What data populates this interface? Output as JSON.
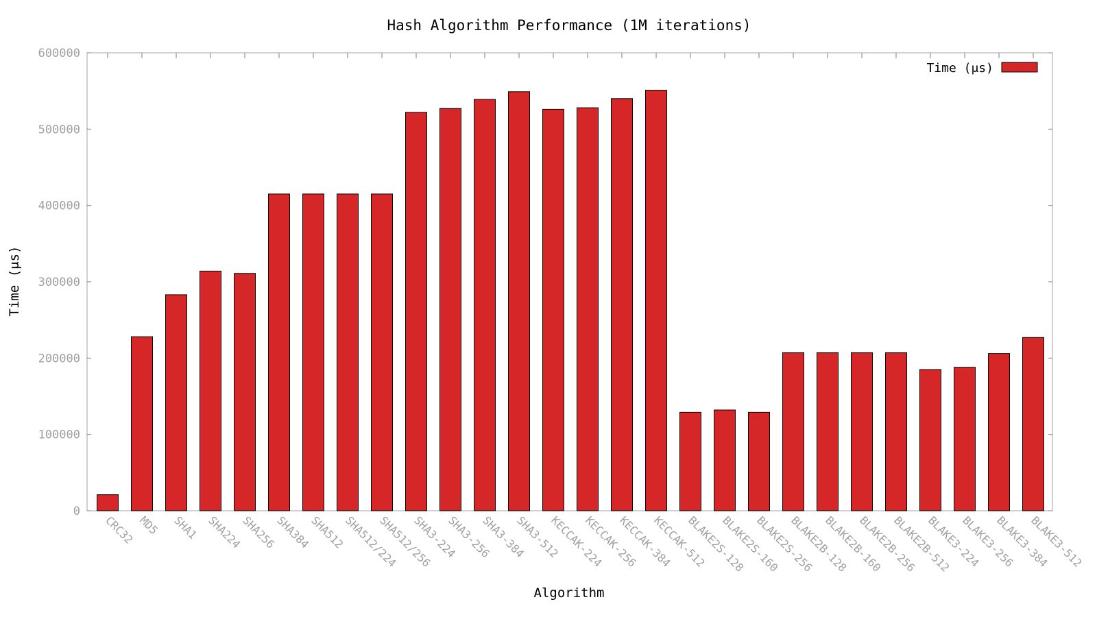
{
  "chart_data": {
    "type": "bar",
    "title": "Hash Algorithm Performance (1M iterations)",
    "xlabel": "Algorithm",
    "ylabel": "Time (μs)",
    "ylim": [
      0,
      600000
    ],
    "yticks": [
      0,
      100000,
      200000,
      300000,
      400000,
      500000,
      600000
    ],
    "ytick_labels": [
      "0",
      "100000",
      "200000",
      "300000",
      "400000",
      "500000",
      "600000"
    ],
    "grid": false,
    "legend_position": "top-right",
    "bar_color": "#d62728",
    "categories": [
      "CRC32",
      "MD5",
      "SHA1",
      "SHA224",
      "SHA256",
      "SHA384",
      "SHA512",
      "SHA512/224",
      "SHA512/256",
      "SHA3-224",
      "SHA3-256",
      "SHA3-384",
      "SHA3-512",
      "KECCAK-224",
      "KECCAK-256",
      "KECCAK-384",
      "KECCAK-512",
      "BLAKE2S-128",
      "BLAKE2S-160",
      "BLAKE2S-256",
      "BLAKE2B-128",
      "BLAKE2B-160",
      "BLAKE2B-256",
      "BLAKE2B-512",
      "BLAKE3-224",
      "BLAKE3-256",
      "BLAKE3-384",
      "BLAKE3-512"
    ],
    "series": [
      {
        "name": "Time (μs)",
        "values": [
          21000,
          228000,
          283000,
          314000,
          311000,
          415000,
          415000,
          415000,
          415000,
          522000,
          527000,
          539000,
          549000,
          526000,
          528000,
          540000,
          551000,
          129000,
          132000,
          129000,
          207000,
          207000,
          207000,
          207000,
          185000,
          188000,
          206000,
          227000
        ]
      }
    ]
  }
}
